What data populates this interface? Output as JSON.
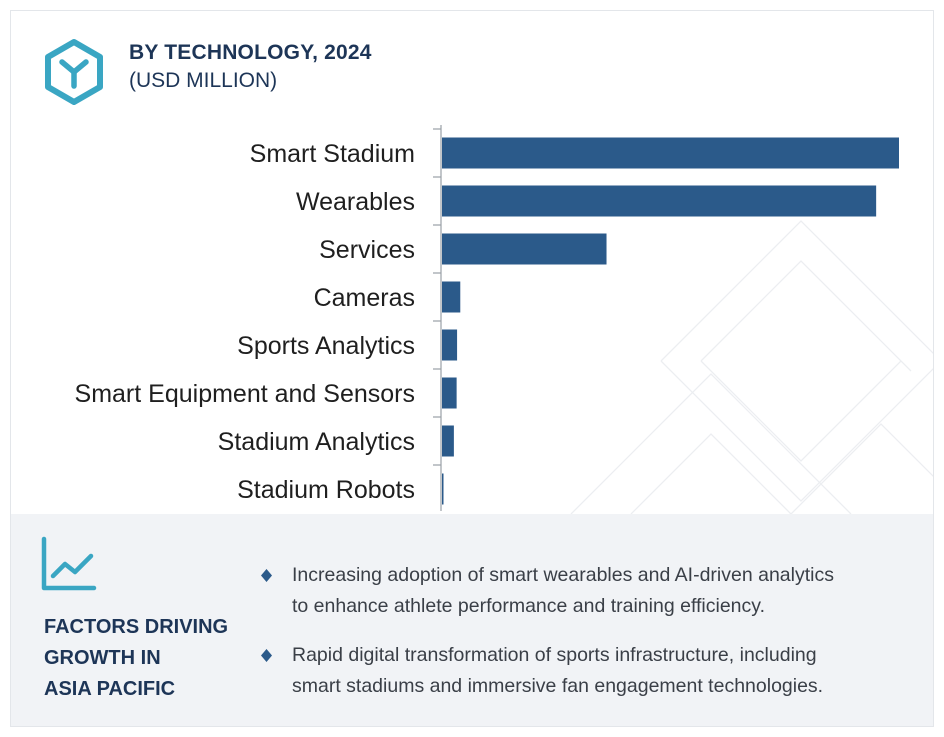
{
  "header": {
    "title": "BY TECHNOLOGY, 2024",
    "subtitle": "(USD MILLION)",
    "icon": "hexagon-y-logo-icon"
  },
  "colors": {
    "bar": "#2b5a8a",
    "accent": "#3aa6c3",
    "heading": "#1d3557",
    "panel": "#f1f3f6"
  },
  "chart_data": {
    "type": "bar",
    "orientation": "horizontal",
    "title": "BY TECHNOLOGY, 2024",
    "subtitle": "(USD MILLION)",
    "xlabel": "",
    "ylabel": "",
    "grid": false,
    "axis_values_shown": false,
    "categories": [
      "Smart Stadium",
      "Wearables",
      "Services",
      "Cameras",
      "Sports Analytics",
      "Smart Equipment and Sensors",
      "Stadium Analytics",
      "Stadium Robots"
    ],
    "values": [
      100,
      95,
      36,
      4,
      3.3,
      3.2,
      2.6,
      0.2
    ],
    "value_scale": "relative, largest = 100",
    "xlim": [
      0,
      100
    ]
  },
  "factors": {
    "icon": "line-chart-icon",
    "title_lines": [
      "FACTORS DRIVING",
      "GROWTH IN",
      "ASIA PACIFIC"
    ],
    "bullets": [
      {
        "line1": "Increasing adoption of smart wearables and AI-driven analytics",
        "line2": "to enhance athlete performance and training efficiency."
      },
      {
        "line1": "Rapid digital transformation of sports infrastructure, including",
        "line2": "smart stadiums and immersive fan engagement technologies."
      }
    ]
  }
}
